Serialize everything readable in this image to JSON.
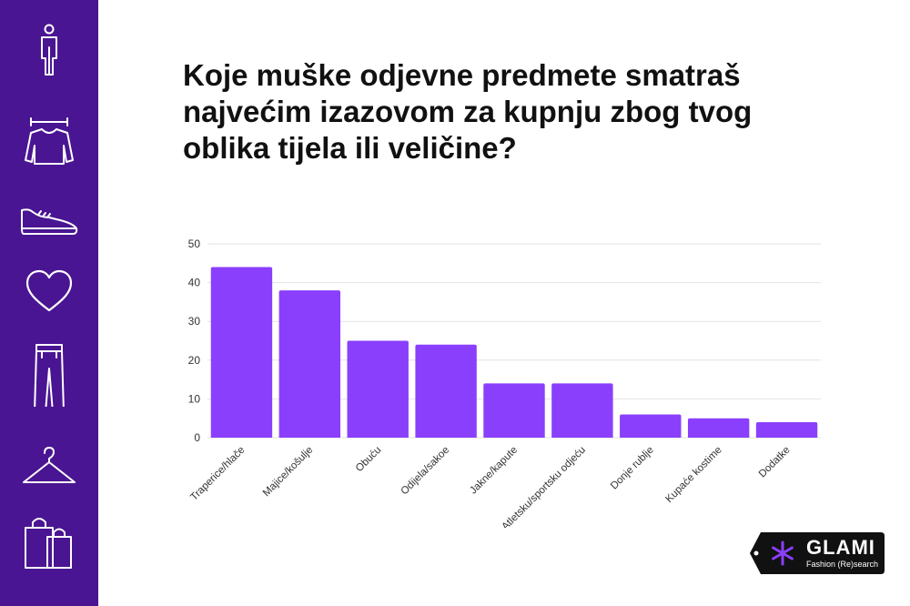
{
  "title": "Koje muške odjevne predmete smatraš najvećim izazovom za kupnju zbog tvog oblika tijela ili veličine?",
  "sidebar": {
    "background": "#4a1592",
    "icons": [
      "person-icon",
      "sweater-icon",
      "sneaker-icon",
      "heart-icon",
      "pants-icon",
      "hanger-icon",
      "shopping-bags-icon"
    ]
  },
  "chart_data": {
    "type": "bar",
    "title": "Koje muške odjevne predmete smatraš najvećim izazovom za kupnju zbog tvog oblika tijela ili veličine?",
    "categories": [
      "Traperice/hlače",
      "Majice/košulje",
      "Obuću",
      "Odijela/sakoe",
      "Jakne/kapute",
      "Atletsku/sportsku odjeću",
      "Donje rublje",
      "Kupaće kostime",
      "Dodatke"
    ],
    "values": [
      44,
      38,
      25,
      24,
      14,
      14,
      6,
      5,
      4
    ],
    "ylim": [
      0,
      50
    ],
    "yticks": [
      0,
      10,
      20,
      30,
      40,
      50
    ],
    "grid": true,
    "bar_color": "#8a3ffc",
    "xlabel": "",
    "ylabel": ""
  },
  "logo": {
    "name": "GLAMI",
    "tagline": "Fashion (Re)search",
    "accent": "#8a3ffc"
  }
}
